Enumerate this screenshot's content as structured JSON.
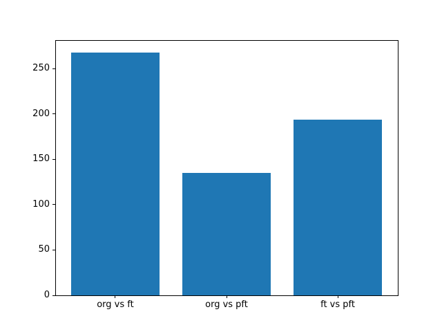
{
  "figure": {
    "background": "#ffffff"
  },
  "chart_data": {
    "type": "bar",
    "title": "",
    "xlabel": "",
    "ylabel": "",
    "categories": [
      "org vs ft",
      "org vs pft",
      "ft vs pft"
    ],
    "values": [
      268,
      135,
      194
    ],
    "yticks": [
      0,
      50,
      100,
      150,
      200,
      250
    ],
    "ylim": [
      0,
      281.4
    ],
    "xlim": [
      -0.54,
      2.54
    ],
    "bar_width_fraction": 0.8,
    "bar_color": "#1f77b4",
    "spine_color": "#000000",
    "tick_label_color": "#000000",
    "grid": false,
    "legend": null
  }
}
